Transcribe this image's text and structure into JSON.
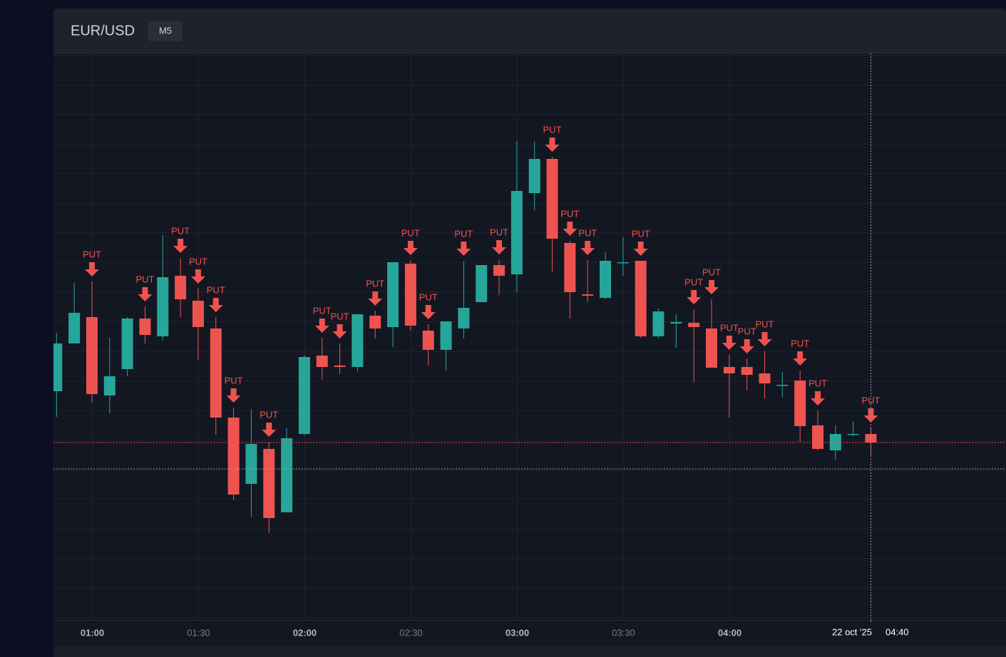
{
  "header": {
    "title": "EUR/USD",
    "timeframe": "M5"
  },
  "chart_data": {
    "type": "candlestick",
    "categories": [
      null,
      null,
      "01:00",
      null,
      null,
      null,
      null,
      null,
      "01:30",
      null,
      null,
      null,
      null,
      null,
      "02:00",
      null,
      null,
      null,
      null,
      null,
      "02:30",
      null,
      null,
      null,
      null,
      null,
      "03:00",
      null,
      null,
      null,
      null,
      null,
      "03:30",
      null,
      null,
      null,
      null,
      null,
      "04:00",
      null,
      null,
      null,
      null,
      null,
      null,
      null,
      null
    ],
    "open": [
      321,
      388,
      425,
      315,
      352,
      423,
      398,
      483,
      448,
      409,
      284,
      191,
      240,
      151,
      261,
      371,
      357,
      355,
      427,
      411,
      500,
      406,
      379,
      409,
      446,
      498,
      485,
      599,
      647,
      529,
      457,
      452,
      501,
      504,
      398,
      416,
      417,
      409,
      355,
      355,
      346,
      329,
      336,
      273,
      238,
      260,
      261
    ],
    "high": [
      403,
      473,
      475,
      396,
      425,
      440,
      540,
      508,
      465,
      425,
      298,
      296,
      250,
      269,
      372,
      396,
      388,
      429,
      434,
      502,
      505,
      415,
      419,
      504,
      498,
      506,
      672,
      672,
      650,
      532,
      505,
      516,
      537,
      504,
      437,
      429,
      436,
      450,
      372,
      367,
      377,
      348,
      350,
      294,
      273,
      279,
      270
    ],
    "low": [
      285,
      388,
      305,
      290,
      342,
      388,
      392,
      425,
      365,
      260,
      168,
      144,
      122,
      151,
      259,
      337,
      345,
      349,
      395,
      383,
      406,
      357,
      350,
      395,
      446,
      456,
      460,
      575,
      489,
      423,
      446,
      450,
      483,
      396,
      395,
      382,
      333,
      354,
      284,
      322,
      311,
      312,
      250,
      238,
      225,
      258,
      230
    ],
    "close": [
      388,
      431,
      317,
      342,
      423,
      400,
      481,
      450,
      411,
      284,
      176,
      247,
      143,
      255,
      369,
      355,
      355,
      429,
      409,
      502,
      413,
      379,
      419,
      438,
      498,
      483,
      602,
      647,
      535,
      460,
      455,
      504,
      502,
      398,
      433,
      418,
      411,
      354,
      346,
      344,
      332,
      330,
      272,
      240,
      261,
      261,
      249
    ],
    "signals": [
      null,
      null,
      "PUT",
      null,
      null,
      "PUT",
      null,
      "PUT",
      "PUT",
      "PUT",
      "PUT",
      null,
      "PUT",
      null,
      null,
      "PUT",
      "PUT",
      null,
      "PUT",
      null,
      "PUT",
      "PUT",
      null,
      "PUT",
      null,
      "PUT",
      null,
      null,
      "PUT",
      "PUT",
      "PUT",
      null,
      null,
      "PUT",
      null,
      null,
      "PUT",
      "PUT",
      "PUT",
      "PUT",
      "PUT",
      null,
      "PUT",
      "PUT",
      null,
      null,
      "PUT"
    ],
    "up_color": "#26a69a",
    "down_color": "#ef5350",
    "signal_color": "#ef5350",
    "ylim": [
      0,
      795
    ],
    "yticks": [
      4,
      45,
      87,
      128,
      170,
      211,
      253,
      294,
      336,
      377,
      419,
      461,
      502,
      544,
      585,
      627,
      668,
      710,
      751,
      793
    ],
    "grid": true,
    "crosshair": {
      "date": "22 oct '25",
      "time": "04:40",
      "value": 212
    }
  }
}
